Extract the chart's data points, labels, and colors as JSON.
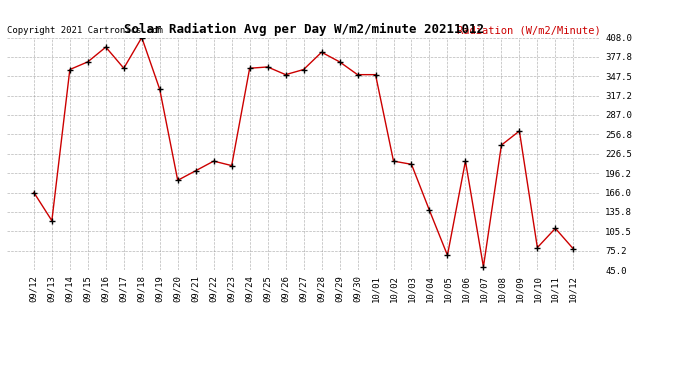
{
  "title": "Solar Radiation Avg per Day W/m2/minute 20211012",
  "copyright": "Copyright 2021 Cartronics.com",
  "legend_label": "Radiation (W/m2/Minute)",
  "dates": [
    "09/12",
    "09/13",
    "09/14",
    "09/15",
    "09/16",
    "09/17",
    "09/18",
    "09/19",
    "09/20",
    "09/21",
    "09/22",
    "09/23",
    "09/24",
    "09/25",
    "09/26",
    "09/27",
    "09/28",
    "09/29",
    "09/30",
    "10/01",
    "10/02",
    "10/03",
    "10/04",
    "10/05",
    "10/06",
    "10/07",
    "10/08",
    "10/09",
    "10/10",
    "10/11",
    "10/12"
  ],
  "values": [
    166,
    122,
    358,
    370,
    393,
    360,
    408,
    327,
    185,
    200,
    215,
    208,
    360,
    362,
    350,
    358,
    385,
    370,
    350,
    350,
    215,
    210,
    138,
    68,
    215,
    50,
    240,
    262,
    80,
    110,
    78
  ],
  "line_color": "#cc0000",
  "marker_color": "#000000",
  "background_color": "#ffffff",
  "grid_color": "#999999",
  "title_color": "#000000",
  "copyright_color": "#000000",
  "legend_color": "#cc0000",
  "ylim": [
    45.0,
    408.0
  ],
  "yticks": [
    45.0,
    75.2,
    105.5,
    135.8,
    166.0,
    196.2,
    226.5,
    256.8,
    287.0,
    317.2,
    347.5,
    377.8,
    408.0
  ],
  "title_fontsize": 9,
  "axis_fontsize": 6.5,
  "legend_fontsize": 7.5,
  "copyright_fontsize": 6.5
}
